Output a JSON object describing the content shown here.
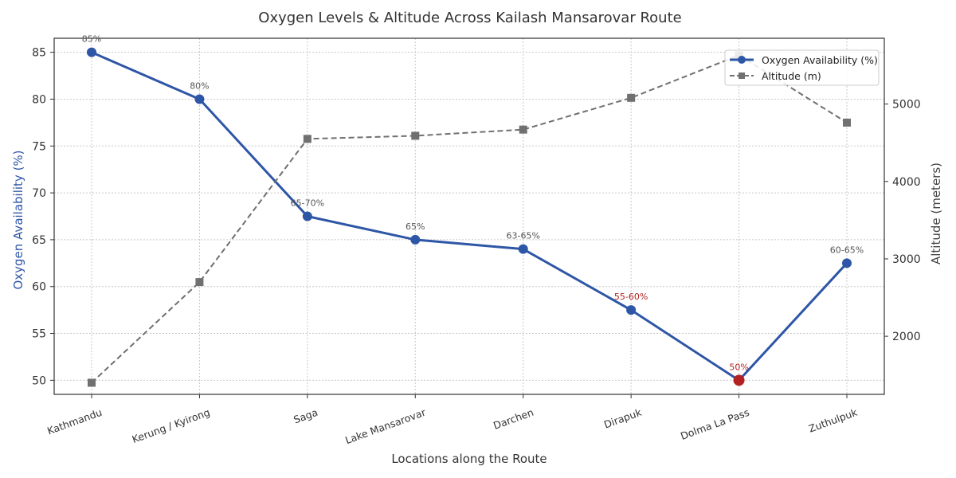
{
  "chart_data": {
    "type": "line",
    "title": "Oxygen Levels & Altitude Across Kailash Mansarovar Route",
    "xlabel": "Locations along the Route",
    "ylabel_left": "Oxygen Availability (%)",
    "ylabel_right": "Altitude (meters)",
    "categories": [
      "Kathmandu",
      "Kerung / Kyirong",
      "Saga",
      "Lake Mansarovar",
      "Darchen",
      "Dirapuk",
      "Dolma La Pass",
      "Zuthulpuk"
    ],
    "ylim_left": [
      48.5,
      86.5
    ],
    "yticks_left": [
      50,
      55,
      60,
      65,
      70,
      75,
      80,
      85
    ],
    "ylim_right": [
      1250,
      5850
    ],
    "yticks_right": [
      2000,
      3000,
      4000,
      5000
    ],
    "grid": true,
    "legend_position": "top-right",
    "series": [
      {
        "name": "Oxygen Availability (%)",
        "axis": "left",
        "style": "solid",
        "marker": "circle",
        "color": "#2e56a6",
        "values": [
          85,
          80,
          67.5,
          65,
          64,
          57.5,
          50,
          62.5
        ],
        "labels": [
          "85%",
          "80%",
          "65-70%",
          "65%",
          "63-65%",
          "55-60%",
          "50%",
          "60-65%"
        ],
        "label_colors": [
          "#555555",
          "#555555",
          "#555555",
          "#555555",
          "#555555",
          "#b22222",
          "#b22222",
          "#555555"
        ],
        "point_colors": [
          "#2e56a6",
          "#2e56a6",
          "#2e56a6",
          "#2e56a6",
          "#2e56a6",
          "#2e56a6",
          "#b22222",
          "#2e56a6"
        ]
      },
      {
        "name": "Altitude (m)",
        "axis": "right",
        "style": "dashed",
        "marker": "square",
        "color": "#707070",
        "values": [
          1400,
          2700,
          4550,
          4590,
          4670,
          5080,
          5630,
          4760
        ]
      }
    ],
    "colors": {
      "left_axis": "#2e56a6",
      "right_axis": "#444444",
      "highlight": "#b22222",
      "grid": "#c8c8c8"
    }
  }
}
